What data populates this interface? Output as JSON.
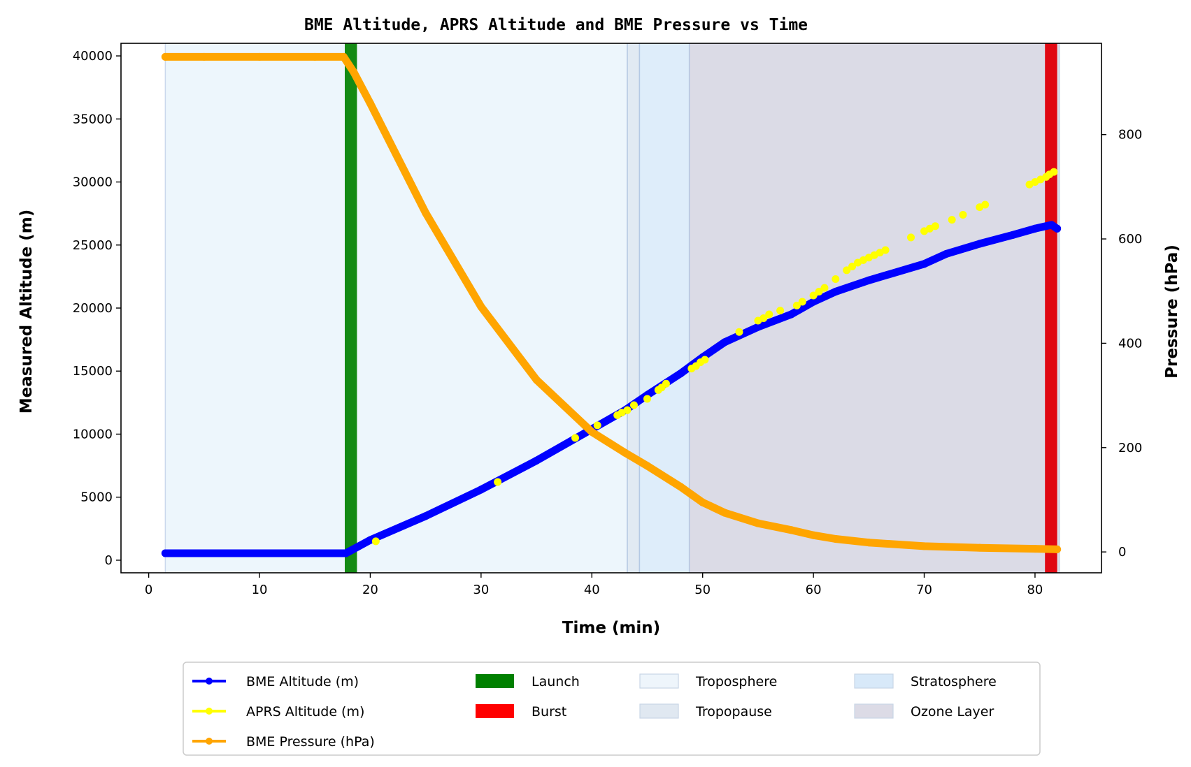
{
  "chart_data": {
    "type": "line",
    "title": "BME Altitude, APRS Altitude and BME Pressure vs Time",
    "xlabel": "Time (min)",
    "ylabel": "Measured Altitude (m)",
    "y2label": "Pressure (hPa)",
    "xlim": [
      -2.5,
      86
    ],
    "ylim": [
      -1000,
      41000
    ],
    "y2lim": [
      -40,
      975
    ],
    "xticks": [
      "0",
      "10",
      "20",
      "30",
      "40",
      "50",
      "60",
      "70",
      "80"
    ],
    "yticks": [
      "0",
      "5000",
      "10000",
      "15000",
      "20000",
      "25000",
      "30000",
      "35000",
      "40000"
    ],
    "y2ticks": [
      "0",
      "200",
      "400",
      "600",
      "800"
    ],
    "grid": false,
    "legend_placement": "bottom-center, below the plot, 4 columns",
    "regions": [
      {
        "name": "Troposphere",
        "x": [
          1.5,
          43.2
        ],
        "color": "#dbeefa",
        "alpha": 0.5
      },
      {
        "name": "Tropopause",
        "x": [
          43.2,
          44.3
        ],
        "color": "#c9d9ea",
        "alpha": 0.55
      },
      {
        "name": "Stratosphere",
        "x": [
          44.3,
          48.8
        ],
        "color": "#cce3f8",
        "alpha": 0.65
      },
      {
        "name": "Ozone Layer",
        "x": [
          48.8,
          82.2
        ],
        "color": "#d9d9e5",
        "alpha": 0.95
      },
      {
        "name": "Launch",
        "x": [
          17.7,
          18.8
        ],
        "color": "#148a14",
        "alpha": 1
      },
      {
        "name": "Burst",
        "x": [
          80.9,
          82.0
        ],
        "color": "#e00812",
        "alpha": 1
      }
    ],
    "series": [
      {
        "name": "BME Altitude (m)",
        "axis": "left",
        "color": "#0000ff",
        "x": [
          1.5,
          5,
          10,
          15,
          17.8,
          20,
          25,
          30,
          35,
          40,
          43,
          45,
          48,
          50,
          52,
          55,
          58,
          60,
          62,
          65,
          70,
          72,
          75,
          78,
          80,
          81.5,
          82
        ],
        "y": [
          550,
          550,
          550,
          550,
          550,
          1600,
          3500,
          5600,
          7900,
          10400,
          11900,
          13100,
          14800,
          16100,
          17300,
          18500,
          19500,
          20500,
          21300,
          22200,
          23500,
          24300,
          25100,
          25800,
          26300,
          26600,
          26300
        ]
      },
      {
        "name": "APRS Altitude (m)",
        "axis": "left",
        "color": "#ffff00",
        "x": [
          20.5,
          31.5,
          38.5,
          40.5,
          42.3,
          42.7,
          43.2,
          43.8,
          45,
          46,
          46.3,
          46.7,
          49,
          49.4,
          49.8,
          50.2,
          53.3,
          55,
          55.5,
          56,
          57,
          58.5,
          59,
          60,
          60.5,
          61,
          62,
          63,
          63.5,
          64,
          64.5,
          65,
          65.5,
          66,
          66.5,
          68.8,
          70,
          70.5,
          71,
          72.5,
          73.5,
          75,
          75.5,
          79.5,
          80,
          80.5,
          81,
          81.3,
          81.7
        ],
        "y": [
          1500,
          6200,
          9700,
          10700,
          11500,
          11700,
          11900,
          12300,
          12800,
          13500,
          13700,
          14000,
          15200,
          15400,
          15700,
          15900,
          18100,
          19000,
          19200,
          19500,
          19800,
          20200,
          20500,
          21000,
          21300,
          21600,
          22300,
          23000,
          23300,
          23600,
          23800,
          24000,
          24200,
          24400,
          24600,
          25600,
          26100,
          26300,
          26500,
          27000,
          27400,
          28000,
          28200,
          29800,
          30000,
          30200,
          30400,
          30600,
          30800
        ]
      },
      {
        "name": "BME Pressure (hPa)",
        "axis": "right",
        "color": "#ffa500",
        "x": [
          1.5,
          5,
          10,
          15,
          17.6,
          18.5,
          20,
          25,
          30,
          35,
          40,
          43,
          45,
          48,
          50,
          52,
          55,
          58,
          60,
          62,
          65,
          70,
          75,
          80,
          82
        ],
        "y": [
          949,
          949,
          949,
          949,
          949,
          920,
          860,
          650,
          470,
          330,
          230,
          190,
          165,
          125,
          95,
          75,
          55,
          42,
          32,
          25,
          18,
          11,
          8,
          6,
          5
        ]
      }
    ],
    "legend": [
      {
        "label": "BME Altitude (m)",
        "kind": "line",
        "color": "#0000ff"
      },
      {
        "label": "APRS Altitude (m)",
        "kind": "line",
        "color": "#ffff00"
      },
      {
        "label": "BME Pressure (hPa)",
        "kind": "line",
        "color": "#ffa500"
      },
      {
        "label": "Launch",
        "kind": "patch",
        "color": "#008000"
      },
      {
        "label": "Burst",
        "kind": "patch",
        "color": "#ff0000"
      },
      {
        "label": "Troposphere",
        "kind": "patch",
        "color": "#eef5fb"
      },
      {
        "label": "Tropopause",
        "kind": "patch",
        "color": "#e0e8f1"
      },
      {
        "label": "Stratosphere",
        "kind": "patch",
        "color": "#d8e9f9"
      },
      {
        "label": "Ozone Layer",
        "kind": "patch",
        "color": "#dcdbe6"
      }
    ]
  }
}
